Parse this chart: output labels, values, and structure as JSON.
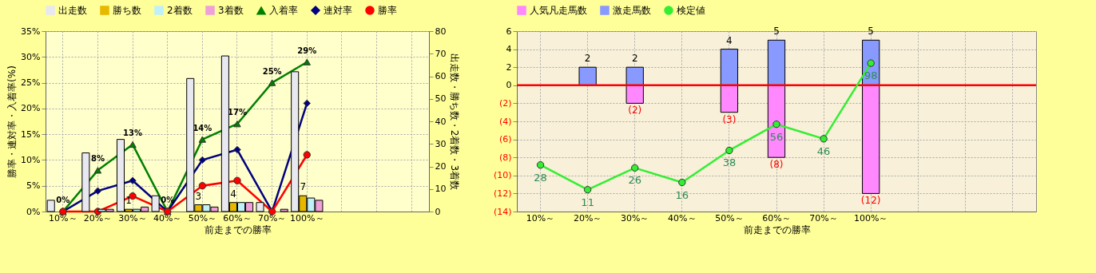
{
  "chart_data": [
    {
      "type": "bar",
      "categories": [
        "10%～",
        "20%～",
        "30%～",
        "40%～",
        "50%～",
        "60%～",
        "70%～",
        "100%～",
        null,
        null,
        null
      ],
      "xlabel": "前走までの勝率",
      "ylabel": "勝率・連対率・入着率(%)",
      "y2label": "出走数・勝ち数・2着数・3着数",
      "ylim": [
        0,
        35
      ],
      "yticks": [
        {
          "value": 0,
          "label": "0%"
        },
        {
          "value": 5,
          "label": "5%"
        },
        {
          "value": 10,
          "label": "10%"
        },
        {
          "value": 15,
          "label": "15%"
        },
        {
          "value": 20,
          "label": "20%"
        },
        {
          "value": 25,
          "label": "25%"
        },
        {
          "value": 30,
          "label": "30%"
        },
        {
          "value": 35,
          "label": "35%"
        }
      ],
      "y2lim": [
        0,
        80
      ],
      "y2ticks": [
        0,
        10,
        20,
        30,
        40,
        50,
        60,
        70,
        80
      ],
      "grid": true,
      "legend": "top",
      "series": [
        {
          "name": "出走数",
          "type": "bar",
          "axis": "y2",
          "color": "#e8e8f0",
          "values": [
            5,
            26,
            32,
            7,
            59,
            69,
            4,
            62,
            null,
            null,
            null
          ]
        },
        {
          "name": "勝ち数",
          "type": "bar",
          "axis": "y2",
          "color": "#e6b800",
          "values": [
            0,
            0,
            1,
            0,
            3,
            4,
            0,
            7,
            null,
            null,
            null
          ],
          "value_labels": [
            null,
            null,
            "1",
            null,
            "3",
            "4",
            null,
            "7",
            null,
            null,
            null
          ]
        },
        {
          "name": "2着数",
          "type": "bar",
          "axis": "y2",
          "color": "#c0f0f8",
          "values": [
            0,
            1,
            1,
            0,
            3,
            4,
            0,
            6,
            null,
            null,
            null
          ]
        },
        {
          "name": "3着数",
          "type": "bar",
          "axis": "y2",
          "color": "#f0a0d8",
          "values": [
            0,
            1,
            2,
            0,
            2,
            4,
            1,
            5,
            null,
            null,
            null
          ]
        },
        {
          "name": "入着率",
          "type": "line",
          "axis": "y",
          "color": "#008000",
          "marker": "triangle",
          "values": [
            0,
            8,
            13,
            0,
            14,
            17,
            25,
            29,
            null,
            null,
            null
          ],
          "value_labels": [
            "0%",
            "8%",
            "13%",
            "0%",
            "14%",
            "17%",
            "25%",
            "29%",
            null,
            null,
            null
          ]
        },
        {
          "name": "連対率",
          "type": "line",
          "axis": "y",
          "color": "#000080",
          "marker": "diamond",
          "values": [
            0,
            4,
            6,
            0,
            10,
            12,
            0,
            21,
            null,
            null,
            null
          ]
        },
        {
          "name": "勝率",
          "type": "line",
          "axis": "y",
          "color": "#ff0000",
          "marker": "circle",
          "values": [
            0,
            0,
            3,
            0,
            5,
            6,
            0,
            11,
            null,
            null,
            null
          ]
        }
      ]
    },
    {
      "type": "bar",
      "stacked": true,
      "categories": [
        "10%～",
        "20%～",
        "30%～",
        "40%～",
        "50%～",
        "60%～",
        "70%～",
        "100%～",
        null,
        null,
        null
      ],
      "xlabel": "前走までの勝率",
      "ylim": [
        -14,
        6
      ],
      "yticks": [
        {
          "value": -14,
          "label": "(14)"
        },
        {
          "value": -12,
          "label": "(12)"
        },
        {
          "value": -10,
          "label": "(10)"
        },
        {
          "value": -8,
          "label": "(8)"
        },
        {
          "value": -6,
          "label": "(6)"
        },
        {
          "value": -4,
          "label": "(4)"
        },
        {
          "value": -2,
          "label": "(2)"
        },
        0,
        2,
        4,
        6
      ],
      "y2lim": [
        -4,
        120
      ],
      "grid": true,
      "legend": "top",
      "ref_lines": [
        {
          "axis": "y",
          "value": 0,
          "color": "#ff0000"
        }
      ],
      "series": [
        {
          "name": "人気凡走馬数",
          "type": "bar",
          "axis": "y",
          "color": "#ff88ff",
          "values": [
            0,
            0,
            -2,
            0,
            -3,
            -8,
            0,
            -12,
            null,
            null,
            null
          ],
          "value_labels": [
            null,
            null,
            "(2)",
            null,
            "(3)",
            "(8)",
            null,
            "(12)",
            null,
            null,
            null
          ]
        },
        {
          "name": "激走馬数",
          "type": "bar",
          "axis": "y",
          "color": "#8899ff",
          "values": [
            0,
            2,
            2,
            0,
            4,
            5,
            0,
            5,
            null,
            null,
            null
          ],
          "value_labels": [
            null,
            "2",
            "2",
            null,
            "4",
            "5",
            null,
            "5",
            null,
            null,
            null
          ]
        },
        {
          "name": "検定値",
          "type": "line",
          "axis": "y2",
          "color": "#33ee33",
          "marker": "circle",
          "values": [
            28,
            11,
            26,
            16,
            38,
            56,
            46,
            98,
            null,
            null,
            null
          ],
          "value_labels": [
            "28",
            "11",
            "26",
            "16",
            "38",
            "56",
            "46",
            "98",
            null,
            null,
            null
          ]
        }
      ]
    }
  ]
}
